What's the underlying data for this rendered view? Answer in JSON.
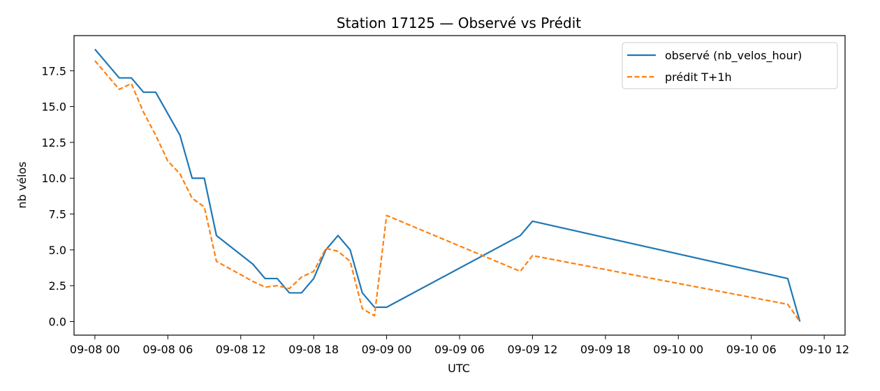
{
  "chart_data": {
    "type": "line",
    "title": "Station 17125 — Observé vs Prédit",
    "xlabel": "UTC",
    "ylabel": "nb vélos",
    "x_axis_type": "datetime",
    "xlim": [
      "2025-09-07T22:17",
      "2025-09-10T13:43"
    ],
    "ylim": [
      -0.95,
      19.95
    ],
    "x_ticks": [
      {
        "t": "2025-09-08T00:00",
        "label": "09-08 00"
      },
      {
        "t": "2025-09-08T06:00",
        "label": "09-08 06"
      },
      {
        "t": "2025-09-08T12:00",
        "label": "09-08 12"
      },
      {
        "t": "2025-09-08T18:00",
        "label": "09-08 18"
      },
      {
        "t": "2025-09-09T00:00",
        "label": "09-09 00"
      },
      {
        "t": "2025-09-09T06:00",
        "label": "09-09 06"
      },
      {
        "t": "2025-09-09T12:00",
        "label": "09-09 12"
      },
      {
        "t": "2025-09-09T18:00",
        "label": "09-09 18"
      },
      {
        "t": "2025-09-10T00:00",
        "label": "09-10 00"
      },
      {
        "t": "2025-09-10T06:00",
        "label": "09-10 06"
      },
      {
        "t": "2025-09-10T12:00",
        "label": "09-10 12"
      }
    ],
    "y_ticks": [
      {
        "v": 0,
        "label": "0.0"
      },
      {
        "v": 2.5,
        "label": "2.5"
      },
      {
        "v": 5,
        "label": "5.0"
      },
      {
        "v": 7.5,
        "label": "7.5"
      },
      {
        "v": 10,
        "label": "10.0"
      },
      {
        "v": 12.5,
        "label": "12.5"
      },
      {
        "v": 15,
        "label": "15.0"
      },
      {
        "v": 17.5,
        "label": "17.5"
      }
    ],
    "grid": false,
    "legend_position": "top-right",
    "series": [
      {
        "name": "observé (nb_velos_hour)",
        "color": "#1f77b4",
        "style": "solid",
        "x": [
          "2025-09-08T00:00",
          "2025-09-08T01:00",
          "2025-09-08T02:00",
          "2025-09-08T03:00",
          "2025-09-08T04:00",
          "2025-09-08T05:00",
          "2025-09-08T07:00",
          "2025-09-08T08:00",
          "2025-09-08T09:00",
          "2025-09-08T10:00",
          "2025-09-08T13:00",
          "2025-09-08T14:00",
          "2025-09-08T15:00",
          "2025-09-08T16:00",
          "2025-09-08T17:00",
          "2025-09-08T18:00",
          "2025-09-08T19:00",
          "2025-09-08T20:00",
          "2025-09-08T21:00",
          "2025-09-08T22:00",
          "2025-09-08T23:00",
          "2025-09-09T00:00",
          "2025-09-09T11:00",
          "2025-09-09T12:00",
          "2025-09-10T09:00",
          "2025-09-10T10:00"
        ],
        "values": [
          19,
          18,
          17,
          17,
          16,
          16,
          13,
          10,
          10,
          6,
          4,
          3,
          3,
          2,
          2,
          3,
          5,
          6,
          5,
          2,
          1,
          1,
          6,
          7,
          3,
          0
        ]
      },
      {
        "name": "prédit T+1h",
        "color": "#ff7f0e",
        "style": "dashed",
        "x": [
          "2025-09-08T00:00",
          "2025-09-08T01:00",
          "2025-09-08T02:00",
          "2025-09-08T03:00",
          "2025-09-08T04:00",
          "2025-09-08T05:00",
          "2025-09-08T06:00",
          "2025-09-08T07:00",
          "2025-09-08T08:00",
          "2025-09-08T09:00",
          "2025-09-08T10:00",
          "2025-09-08T13:00",
          "2025-09-08T14:00",
          "2025-09-08T15:00",
          "2025-09-08T16:00",
          "2025-09-08T17:00",
          "2025-09-08T18:00",
          "2025-09-08T19:00",
          "2025-09-08T20:00",
          "2025-09-08T21:00",
          "2025-09-08T22:00",
          "2025-09-08T23:00",
          "2025-09-09T00:00",
          "2025-09-09T11:00",
          "2025-09-09T12:00",
          "2025-09-10T09:00",
          "2025-09-10T10:00"
        ],
        "values": [
          18.2,
          17.2,
          16.2,
          16.6,
          14.6,
          13.0,
          11.2,
          10.3,
          8.6,
          8.0,
          4.2,
          2.8,
          2.4,
          2.5,
          2.3,
          3.1,
          3.5,
          5.1,
          4.9,
          4.2,
          0.9,
          0.4,
          7.4,
          3.5,
          4.6,
          1.2,
          0.0
        ]
      }
    ]
  }
}
